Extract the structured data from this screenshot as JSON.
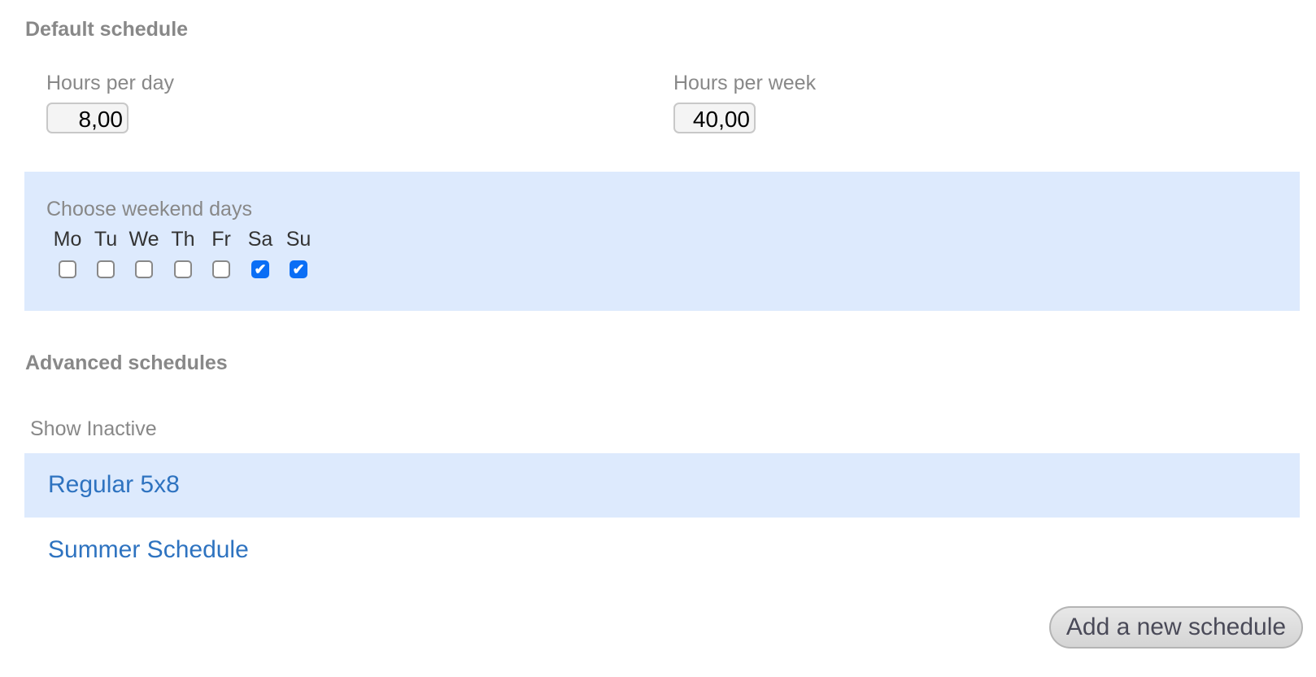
{
  "default_schedule": {
    "title": "Default schedule",
    "hours_per_day_label": "Hours per day",
    "hours_per_day": "8,00",
    "hours_per_week_label": "Hours per week",
    "hours_per_week": "40,00"
  },
  "weekend": {
    "label": "Choose weekend days",
    "days": [
      {
        "label": "Mo",
        "checked": false
      },
      {
        "label": "Tu",
        "checked": false
      },
      {
        "label": "We",
        "checked": false
      },
      {
        "label": "Th",
        "checked": false
      },
      {
        "label": "Fr",
        "checked": false
      },
      {
        "label": "Sa",
        "checked": true
      },
      {
        "label": "Su",
        "checked": true
      }
    ],
    "accent": "#0a6ef5"
  },
  "advanced": {
    "title": "Advanced schedules",
    "show_inactive": "Show Inactive",
    "schedules": [
      "Regular 5x8",
      "Summer Schedule"
    ],
    "add_button": "Add a new schedule"
  }
}
